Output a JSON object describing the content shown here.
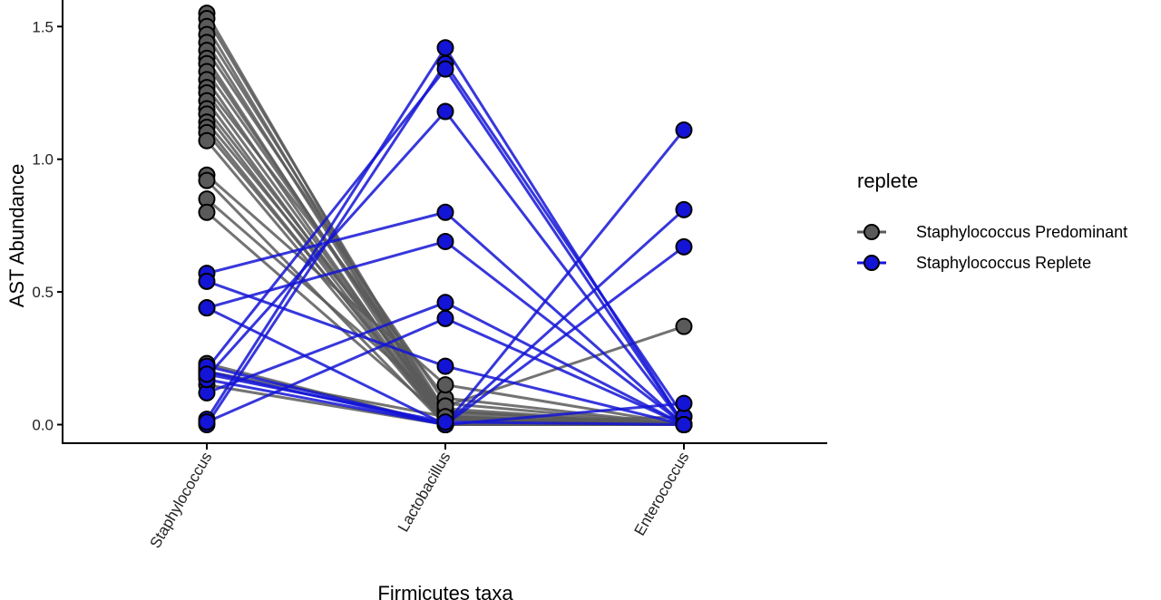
{
  "chart_data": {
    "type": "line",
    "title": "",
    "xlabel": "Firmicutes taxa",
    "ylabel": "AST Abundance",
    "categories": [
      "Staphylococcus",
      "Lactobacillus",
      "Enterococcus"
    ],
    "y_ticks": [
      "0.0",
      "0.5",
      "1.0",
      "1.5"
    ],
    "ylim": [
      -0.07,
      1.6
    ],
    "grid": false,
    "legend": {
      "title": "replete",
      "placement": "right"
    },
    "series": [
      {
        "name": "Staphylococcus Predominant",
        "color": "#5a5a5a",
        "samples": [
          [
            1.55,
            0.0,
            0.0
          ],
          [
            1.53,
            0.03,
            0.0
          ],
          [
            1.5,
            0.0,
            0.0
          ],
          [
            1.47,
            0.05,
            0.0
          ],
          [
            1.44,
            0.02,
            0.0
          ],
          [
            1.41,
            0.08,
            0.0
          ],
          [
            1.38,
            0.0,
            0.0
          ],
          [
            1.36,
            0.03,
            0.0
          ],
          [
            1.33,
            0.05,
            0.0
          ],
          [
            1.3,
            0.0,
            0.0
          ],
          [
            1.27,
            0.1,
            0.0
          ],
          [
            1.25,
            0.02,
            0.0
          ],
          [
            1.22,
            0.0,
            0.0
          ],
          [
            1.19,
            0.04,
            0.0
          ],
          [
            1.17,
            0.0,
            0.0
          ],
          [
            1.14,
            0.06,
            0.0
          ],
          [
            1.12,
            0.0,
            0.0
          ],
          [
            1.1,
            0.02,
            0.0
          ],
          [
            1.07,
            0.0,
            0.0
          ],
          [
            0.94,
            0.15,
            0.0
          ],
          [
            0.92,
            0.0,
            0.0
          ],
          [
            0.85,
            0.07,
            0.37
          ],
          [
            0.8,
            0.02,
            0.0
          ],
          [
            0.23,
            0.0,
            0.03
          ],
          [
            0.2,
            0.03,
            0.0
          ],
          [
            0.15,
            0.0,
            0.0
          ]
        ]
      },
      {
        "name": "Staphylococcus Replete",
        "color": "#1414d6",
        "samples": [
          [
            0.02,
            1.42,
            0.0
          ],
          [
            0.0,
            1.36,
            0.03
          ],
          [
            0.21,
            1.34,
            0.0
          ],
          [
            0.18,
            1.18,
            0.0
          ],
          [
            0.57,
            0.8,
            0.0
          ],
          [
            0.44,
            0.69,
            0.0
          ],
          [
            0.12,
            0.46,
            0.0
          ],
          [
            0.01,
            0.4,
            0.0
          ],
          [
            0.54,
            0.22,
            0.0
          ],
          [
            0.44,
            0.0,
            1.11
          ],
          [
            0.2,
            0.0,
            0.81
          ],
          [
            0.17,
            0.0,
            0.67
          ],
          [
            0.22,
            0.0,
            0.08
          ],
          [
            0.19,
            0.01,
            0.0
          ]
        ]
      }
    ]
  }
}
